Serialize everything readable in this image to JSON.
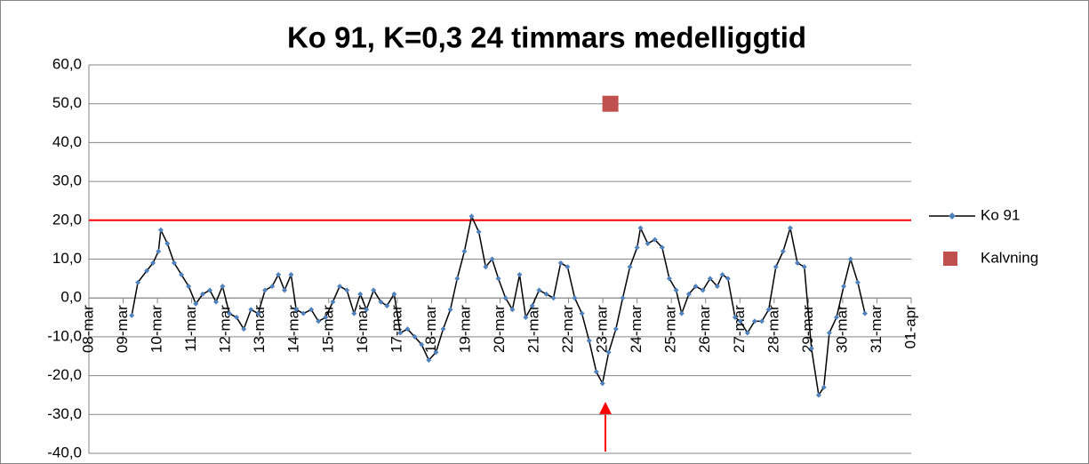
{
  "chart_data": {
    "type": "line",
    "title": "Ko 91, K=0,3 24 timmars medelliggtid",
    "xlim": [
      0,
      24
    ],
    "xticks": [
      {
        "value": 0,
        "label": "08-mar"
      },
      {
        "value": 1,
        "label": "09-mar"
      },
      {
        "value": 2,
        "label": "10-mar"
      },
      {
        "value": 3,
        "label": "11-mar"
      },
      {
        "value": 4,
        "label": "12-mar"
      },
      {
        "value": 5,
        "label": "13-mar"
      },
      {
        "value": 6,
        "label": "14-mar"
      },
      {
        "value": 7,
        "label": "15-mar"
      },
      {
        "value": 8,
        "label": "16-mar"
      },
      {
        "value": 9,
        "label": "17-mar"
      },
      {
        "value": 10,
        "label": "18-mar"
      },
      {
        "value": 11,
        "label": "19-mar"
      },
      {
        "value": 12,
        "label": "20-mar"
      },
      {
        "value": 13,
        "label": "21-mar"
      },
      {
        "value": 14,
        "label": "22-mar"
      },
      {
        "value": 15,
        "label": "23-mar"
      },
      {
        "value": 16,
        "label": "24-mar"
      },
      {
        "value": 17,
        "label": "25-mar"
      },
      {
        "value": 18,
        "label": "26-mar"
      },
      {
        "value": 19,
        "label": "27-mar"
      },
      {
        "value": 20,
        "label": "28-mar"
      },
      {
        "value": 21,
        "label": "29-mar"
      },
      {
        "value": 22,
        "label": "30-mar"
      },
      {
        "value": 23,
        "label": "31-mar"
      },
      {
        "value": 24,
        "label": "01-apr"
      }
    ],
    "ylim": [
      -40,
      60
    ],
    "yticks": [
      {
        "value": -40,
        "label": "-40,0"
      },
      {
        "value": -30,
        "label": "-30,0"
      },
      {
        "value": -20,
        "label": "-20,0"
      },
      {
        "value": -10,
        "label": "-10,0"
      },
      {
        "value": 0,
        "label": "0,0"
      },
      {
        "value": 10,
        "label": "10,0"
      },
      {
        "value": 20,
        "label": "20,0"
      },
      {
        "value": 30,
        "label": "30,0"
      },
      {
        "value": 40,
        "label": "40,0"
      },
      {
        "value": 50,
        "label": "50,0"
      },
      {
        "value": 60,
        "label": "60,0"
      }
    ],
    "grid": true,
    "legend": "right",
    "hline": {
      "value": 20,
      "color": "#ff0000"
    },
    "series": [
      {
        "name": "Ko 91",
        "type": "line",
        "color": "#4f81bd",
        "line_color": "#000000",
        "x": [
          1.25,
          1.43,
          1.69,
          1.87,
          2.03,
          2.1,
          2.29,
          2.49,
          2.7,
          2.91,
          3.12,
          3.32,
          3.53,
          3.71,
          3.9,
          4.1,
          4.31,
          4.52,
          4.73,
          4.94,
          5.14,
          5.35,
          5.53,
          5.71,
          5.9,
          6.05,
          6.26,
          6.49,
          6.7,
          6.91,
          7.12,
          7.32,
          7.53,
          7.74,
          7.92,
          8.1,
          8.31,
          8.52,
          8.7,
          8.91,
          9.09,
          9.3,
          9.51,
          9.71,
          9.92,
          10.13,
          10.34,
          10.55,
          10.75,
          10.96,
          11.17,
          11.38,
          11.58,
          11.77,
          11.95,
          12.16,
          12.36,
          12.57,
          12.75,
          12.94,
          13.14,
          13.35,
          13.56,
          13.77,
          13.97,
          14.18,
          14.39,
          14.6,
          14.81,
          14.99,
          15.17,
          15.38,
          15.58,
          15.79,
          16.0,
          16.1,
          16.31,
          16.52,
          16.73,
          16.94,
          17.14,
          17.3,
          17.51,
          17.71,
          17.92,
          18.13,
          18.34,
          18.49,
          18.65,
          18.86,
          19.01,
          19.22,
          19.43,
          19.64,
          19.84,
          20.05,
          20.26,
          20.47,
          20.68,
          20.88,
          21.09,
          21.3,
          21.45,
          21.61,
          21.82,
          22.03,
          22.23,
          22.44,
          22.65
        ],
        "values": [
          -4.5,
          4,
          7,
          9,
          12,
          17.5,
          14,
          9,
          6,
          3,
          -1.5,
          1,
          2,
          -1,
          3,
          -4,
          -5,
          -8,
          -3,
          -4,
          2,
          3,
          6,
          2,
          6,
          -3,
          -4,
          -3,
          -6,
          -5,
          -1,
          3,
          2,
          -4,
          1,
          -3,
          2,
          -1,
          -2,
          1,
          -9,
          -8,
          -10,
          -12,
          -16,
          -14,
          -8,
          -3,
          5,
          12,
          21,
          17,
          8,
          10,
          5,
          0,
          -3,
          6,
          -5,
          -2,
          2,
          1,
          0,
          9,
          8,
          0,
          -4,
          -11,
          -19,
          -22,
          -14,
          -8,
          0,
          8,
          13,
          18,
          14,
          15,
          13,
          5,
          2,
          -4,
          1,
          3,
          2,
          5,
          3,
          6,
          5,
          -5,
          -6,
          -9,
          -6,
          -6,
          -3,
          8,
          12,
          18,
          9,
          8,
          -13,
          -25,
          -23,
          -9,
          -5,
          3,
          10,
          4,
          -4
        ]
      },
      {
        "name": "Kalvning",
        "type": "scatter",
        "color": "#c0504d",
        "x": [
          15.22
        ],
        "values": [
          50
        ]
      }
    ]
  }
}
